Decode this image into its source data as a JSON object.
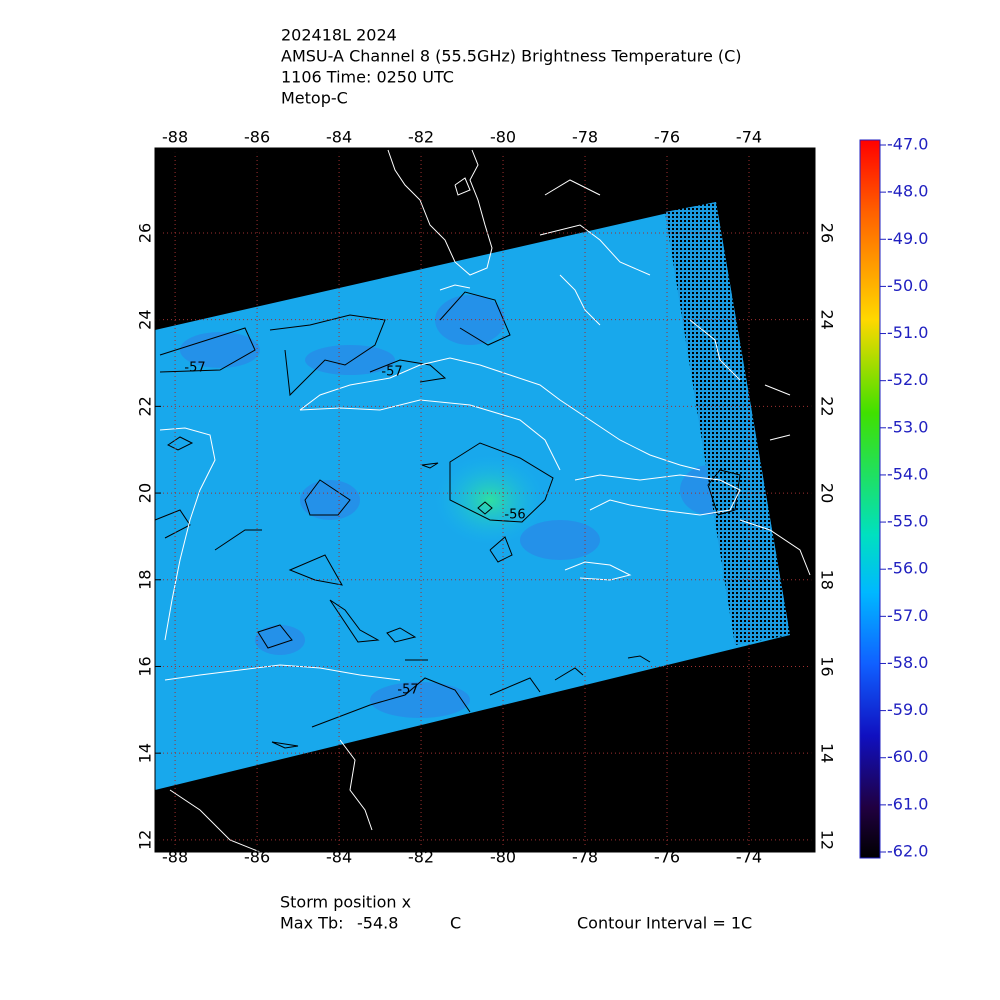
{
  "header": {
    "lines": [
      "202418L 2024",
      "AMSU-A Channel 8 (55.5GHz) Brightness Temperature (C)",
      "1106 Time: 0250 UTC",
      "Metop-C"
    ]
  },
  "map": {
    "lon_ticks": [
      -88,
      -86,
      -84,
      -82,
      -80,
      -78,
      -76,
      -74
    ],
    "lat_ticks": [
      26,
      24,
      22,
      20,
      18,
      16,
      14,
      12
    ],
    "lonlim": [
      -88.49,
      -72.39
    ],
    "latlim": [
      11.72,
      27.96
    ],
    "contour_labels": [
      -57,
      -57,
      -56,
      -57
    ]
  },
  "colorbar": {
    "lim": [
      -62,
      -47
    ],
    "ticks": [
      {
        "value": -47,
        "label": "-47.0"
      },
      {
        "value": -48,
        "label": "-48.0"
      },
      {
        "value": -49,
        "label": "-49.0"
      },
      {
        "value": -50,
        "label": "-50.0"
      },
      {
        "value": -51,
        "label": "-51.0"
      },
      {
        "value": -52,
        "label": "-52.0"
      },
      {
        "value": -53,
        "label": "-53.0"
      },
      {
        "value": -54,
        "label": "-54.0"
      },
      {
        "value": -55,
        "label": "-55.0"
      },
      {
        "value": -56,
        "label": "-56.0"
      },
      {
        "value": -57,
        "label": "-57.0"
      },
      {
        "value": -58,
        "label": "-58.0"
      },
      {
        "value": -59,
        "label": "-59.0"
      },
      {
        "value": -60,
        "label": "-60.0"
      },
      {
        "value": -61,
        "label": "-61.0"
      },
      {
        "value": -62,
        "label": "-62.0"
      }
    ]
  },
  "footer": {
    "storm_position": "Storm position x",
    "max_tb_label": "Max Tb:",
    "max_tb": -54.8,
    "max_tb_unit": "C",
    "contour_interval": "Contour Interval = 1C"
  }
}
